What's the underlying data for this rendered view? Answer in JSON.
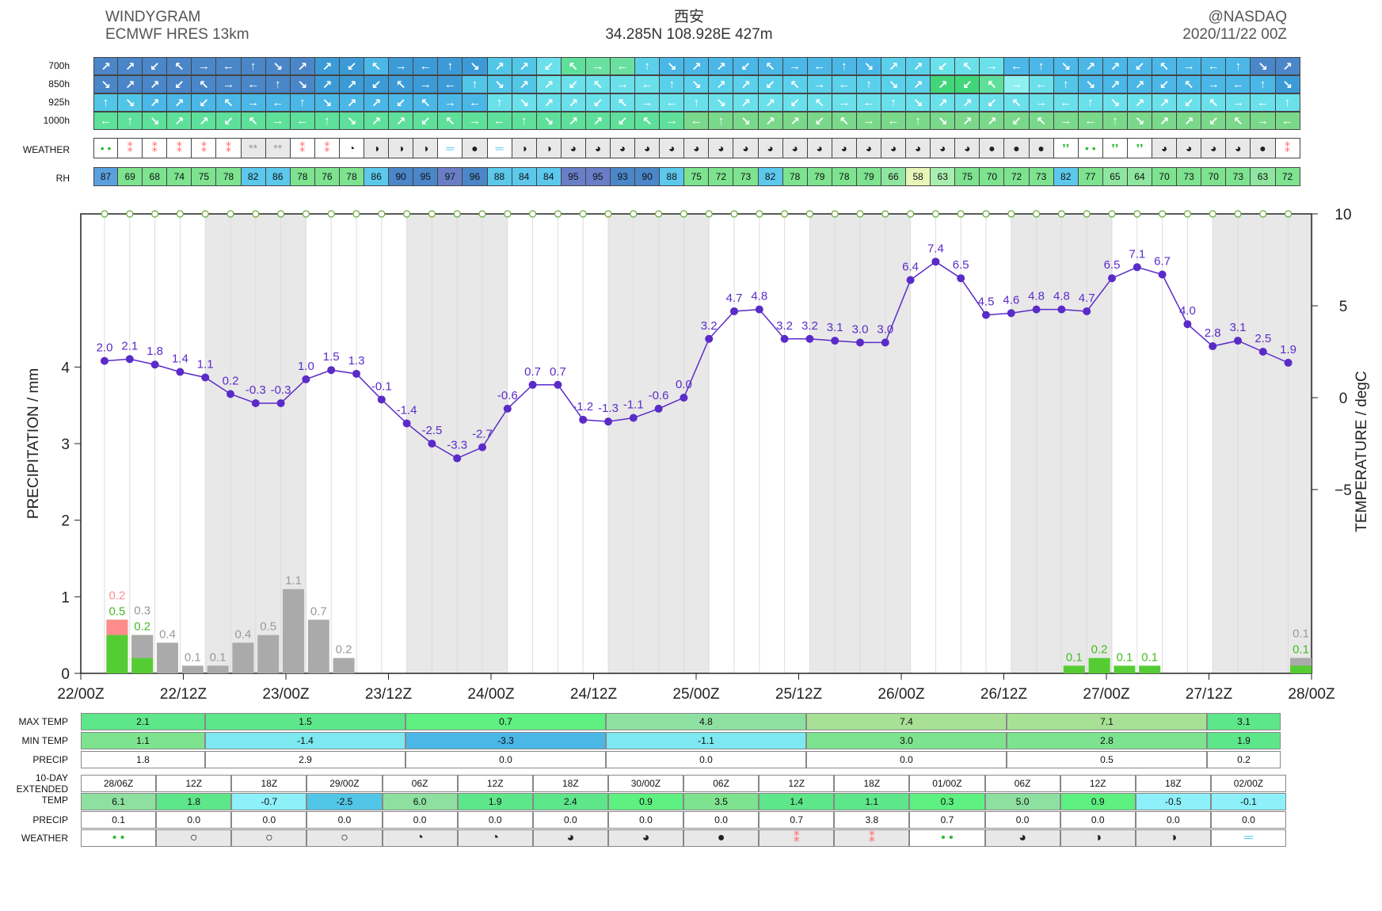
{
  "header": {
    "title_line1": "WINDYGRAM",
    "title_line2": "ECMWF HRES 13km",
    "location": "西安",
    "coords": "34.285N 108.928E 427m",
    "credit": "@NASDAQ",
    "run": "2020/11/22 00Z"
  },
  "wind_levels": [
    "700h",
    "850h",
    "925h",
    "1000h"
  ],
  "labels": {
    "weather": "WEATHER",
    "rh": "RH"
  },
  "wind_colors": {
    "700h": [
      "#4a86c8",
      "#4a86c8",
      "#4a86c8",
      "#4a86c8",
      "#4a86c8",
      "#4a86c8",
      "#4a86c8",
      "#4a86c8",
      "#4a86c8",
      "#3c9bd6",
      "#3c9bd6",
      "#4ab7e6",
      "#3c9bd6",
      "#3c9bd6",
      "#3c9bd6",
      "#3c9bd6",
      "#52c6e6",
      "#52c6e6",
      "#6ae0ea",
      "#5ee09a",
      "#6ae0a0",
      "#6ae0a0",
      "#5ad0ea",
      "#4ab7e6",
      "#4ab7e6",
      "#4ab7e6",
      "#4ab7e6",
      "#4ab7e6",
      "#4ab7e6",
      "#4ab7e6",
      "#4ab7e6",
      "#4ab7e6",
      "#5ad0ea",
      "#5ad0ea",
      "#6ae0ea",
      "#6ae0ea",
      "#6ae0ea",
      "#4ab7e6",
      "#4ab7e6",
      "#4ab7e6",
      "#4ab7e6",
      "#4ab7e6",
      "#4ab7e6",
      "#4ab7e6",
      "#4ab7e6",
      "#4ab7e6",
      "#4ab7e6",
      "#4a86c8",
      "#4a86c8"
    ],
    "850h": [
      "#4a86c8",
      "#4a86c8",
      "#4a86c8",
      "#4a86c8",
      "#4a86c8",
      "#4a86c8",
      "#4a86c8",
      "#4a86c8",
      "#4a86c8",
      "#3c9bd6",
      "#3c9bd6",
      "#3c9bd6",
      "#3c9bd6",
      "#3c9bd6",
      "#3c9bd6",
      "#52c6e6",
      "#52c6e6",
      "#52c6e6",
      "#6ae0ea",
      "#6ae0ea",
      "#6ae0ea",
      "#6ae0ea",
      "#6ae0ea",
      "#5ad0ea",
      "#5ad0ea",
      "#5ad0ea",
      "#5ad0ea",
      "#5ad0ea",
      "#5ad0ea",
      "#5ad0ea",
      "#5ad0ea",
      "#5ad0ea",
      "#5ad0ea",
      "#5ad0ea",
      "#42d67a",
      "#42d67a",
      "#5ee09a",
      "#8ef0f0",
      "#6ae0ea",
      "#52c6e6",
      "#4ab7e6",
      "#4ab7e6",
      "#4ab7e6",
      "#4ab7e6",
      "#4ab7e6",
      "#4ab7e6",
      "#4ab7e6",
      "#4ab7e6",
      "#3c9bd6"
    ],
    "925h": [
      "#52c6e6",
      "#52c6e6",
      "#4ab7e6",
      "#4ab7e6",
      "#4ab7e6",
      "#4ab7e6",
      "#4ab7e6",
      "#4ab7e6",
      "#4ab7e6",
      "#4ab7e6",
      "#4ab7e6",
      "#4ab7e6",
      "#4ab7e6",
      "#4ab7e6",
      "#4ab7e6",
      "#4ab7e6",
      "#6ae0ea",
      "#6ae0ea",
      "#6ae0ea",
      "#6ae0ea",
      "#6ae0ea",
      "#6ae0ea",
      "#6ae0ea",
      "#6ae0ea",
      "#6ae0ea",
      "#6ae0ea",
      "#6ae0ea",
      "#6ae0ea",
      "#6ae0ea",
      "#6ae0ea",
      "#6ae0ea",
      "#6ae0ea",
      "#6ae0ea",
      "#6ae0ea",
      "#6ae0ea",
      "#6ae0ea",
      "#6ae0ea",
      "#6ae0ea",
      "#6ae0ea",
      "#6ae0ea",
      "#6ae0ea",
      "#6ae0ea",
      "#6ae0ea",
      "#6ae0ea",
      "#6ae0ea",
      "#6ae0ea",
      "#6ae0ea",
      "#6ae0ea",
      "#6ae0ea"
    ],
    "1000h": [
      "#5ee09a",
      "#5ee09a",
      "#5ee09a",
      "#5ee09a",
      "#5ee09a",
      "#5ee09a",
      "#5ee09a",
      "#5ee09a",
      "#5ee09a",
      "#5ee09a",
      "#5ee09a",
      "#5ee09a",
      "#5ee09a",
      "#5ee09a",
      "#5ee09a",
      "#5ee09a",
      "#5ee09a",
      "#5ee09a",
      "#5ee09a",
      "#5ee09a",
      "#5ee09a",
      "#5ee09a",
      "#5ee09a",
      "#5ee09a",
      "#7ad88a",
      "#7ad88a",
      "#7ad88a",
      "#7ad88a",
      "#7ad88a",
      "#7ad88a",
      "#7ad88a",
      "#7ad88a",
      "#7ad88a",
      "#7ad88a",
      "#7ad88a",
      "#7ad88a",
      "#7ad88a",
      "#7ad88a",
      "#7ad88a",
      "#7ad88a",
      "#7ad88a",
      "#7ad88a",
      "#7ad88a",
      "#7ad88a",
      "#7ad88a",
      "#7ad88a",
      "#7ad88a",
      "#7ad88a",
      "#7ad88a"
    ]
  },
  "weather_icons": [
    "drizzle",
    "snow",
    "snow",
    "snow",
    "snow",
    "snow",
    "snow-light",
    "snow-light",
    "snow",
    "snow",
    "partly-cloudy",
    "half-cloudy",
    "half-cloudy",
    "half-cloudy",
    "fog",
    "overcast",
    "fog",
    "half-cloudy",
    "half-cloudy",
    "mostly-cloudy",
    "mostly-cloudy",
    "mostly-cloudy",
    "mostly-cloudy",
    "mostly-cloudy",
    "mostly-cloudy",
    "mostly-cloudy",
    "mostly-cloudy",
    "mostly-cloudy",
    "mostly-cloudy",
    "mostly-cloudy",
    "mostly-cloudy",
    "mostly-cloudy",
    "mostly-cloudy",
    "mostly-cloudy",
    "mostly-cloudy",
    "mostly-cloudy",
    "overcast",
    "overcast",
    "overcast",
    "rain",
    "drizzle",
    "rain",
    "rain",
    "mostly-cloudy",
    "mostly-cloudy",
    "mostly-cloudy",
    "mostly-cloudy",
    "overcast",
    "snow"
  ],
  "rh": [
    87,
    69,
    68,
    74,
    75,
    78,
    82,
    86,
    78,
    76,
    78,
    86,
    90,
    95,
    97,
    96,
    88,
    84,
    84,
    95,
    95,
    93,
    90,
    88,
    75,
    72,
    73,
    82,
    78,
    79,
    78,
    79,
    66,
    58,
    63,
    75,
    70,
    72,
    73,
    82,
    77,
    65,
    64,
    70,
    73,
    70,
    73,
    63,
    72
  ],
  "rh_colors": [
    "#5aa0dc",
    "#7de38f",
    "#7de38f",
    "#7de38f",
    "#7de38f",
    "#7de38f",
    "#5cc8ec",
    "#5cc8ec",
    "#7de38f",
    "#7de38f",
    "#7de38f",
    "#5cc8ec",
    "#4a86c8",
    "#4a86c8",
    "#6a7ec8",
    "#4a86c8",
    "#5cc8ec",
    "#5cc8ec",
    "#5cc8ec",
    "#6a7ec8",
    "#6a7ec8",
    "#4a86c8",
    "#4a86c8",
    "#5cc8ec",
    "#7de38f",
    "#7de38f",
    "#7de38f",
    "#5cc8ec",
    "#7de38f",
    "#7de38f",
    "#7de38f",
    "#7de38f",
    "#8fe6a0",
    "#e8f5b8",
    "#a8eeb0",
    "#7de38f",
    "#7de38f",
    "#7de38f",
    "#7de38f",
    "#5cc8ec",
    "#7de38f",
    "#8fe6a0",
    "#8fe6a0",
    "#7de38f",
    "#7de38f",
    "#7de38f",
    "#7de38f",
    "#8fe6a0",
    "#7de38f"
  ],
  "chart_data": {
    "type": "bar+line",
    "x_ticks": [
      "22/00Z",
      "22/12Z",
      "23/00Z",
      "23/12Z",
      "24/00Z",
      "24/12Z",
      "25/00Z",
      "25/12Z",
      "26/00Z",
      "26/12Z",
      "27/00Z",
      "27/12Z",
      "28/00Z"
    ],
    "ylabel_left": "PRECIPITATION / mm",
    "ylabel_right": "TEMPERATURE / degC",
    "ylim_left": [
      0,
      6
    ],
    "ylim_right": [
      -15,
      10
    ],
    "left_ticks": [
      0,
      1,
      2,
      3,
      4
    ],
    "right_ticks": [
      -5,
      0,
      5,
      10
    ],
    "temperature": [
      2.0,
      2.1,
      1.8,
      1.4,
      1.1,
      0.2,
      -0.3,
      -0.3,
      1.0,
      1.5,
      1.3,
      -0.1,
      -1.4,
      -2.5,
      -3.3,
      -2.7,
      -0.6,
      0.7,
      0.7,
      -1.2,
      -1.3,
      -1.1,
      -0.6,
      0.0,
      3.2,
      4.7,
      4.8,
      3.2,
      3.2,
      3.1,
      3.0,
      3.0,
      6.4,
      7.4,
      6.5,
      4.5,
      4.6,
      4.8,
      4.8,
      4.7,
      6.5,
      7.1,
      6.7,
      4.0,
      2.8,
      3.1,
      2.5,
      1.9
    ],
    "temperature_labels": [
      "2.0",
      "2.1",
      "1.8",
      "1.4",
      "1.1",
      "0.2",
      "-0.3",
      "-0.3",
      "1.0",
      "1.5",
      "1.3",
      "-0.1",
      "-1.4",
      "-2.5",
      "-3.3",
      "-2.7",
      "-0.6",
      "0.7",
      "0.7",
      "-1.2",
      "-1.3",
      "-1.1",
      "-0.6",
      "0.0",
      "3.2",
      "4.7",
      "4.8",
      "3.2",
      "3.2",
      "3.1",
      "3.0",
      "3.0",
      "6.4",
      "7.4",
      "6.5",
      "4.5",
      "4.6",
      "4.8",
      "4.8",
      "4.7",
      "6.5",
      "7.1",
      "6.7",
      "4.0",
      "2.8",
      "3.1",
      "2.5",
      "1.9"
    ],
    "precip_bars": [
      {
        "slot": 0,
        "total": 0.7,
        "rain": 0.5,
        "snow": 0.2,
        "labels": [
          "0.2",
          "0.5"
        ]
      },
      {
        "slot": 1,
        "total": 0.5,
        "rain": 0.2,
        "labels": [
          "0.3",
          "0.2"
        ]
      },
      {
        "slot": 2,
        "total": 0.4,
        "labels": [
          "0.4"
        ]
      },
      {
        "slot": 3,
        "total": 0.1,
        "labels": [
          "0.1"
        ]
      },
      {
        "slot": 4,
        "total": 0.1,
        "labels": [
          "0.1"
        ]
      },
      {
        "slot": 5,
        "total": 0.4,
        "labels": [
          "0.4"
        ]
      },
      {
        "slot": 6,
        "total": 0.5,
        "labels": [
          "0.5"
        ]
      },
      {
        "slot": 7,
        "total": 1.1,
        "labels": [
          "1.1"
        ]
      },
      {
        "slot": 8,
        "total": 0.7,
        "labels": [
          "0.7"
        ]
      },
      {
        "slot": 9,
        "total": 0.2,
        "labels": [
          "0.2"
        ]
      },
      {
        "slot": 38,
        "total": 0.1,
        "rain": 0.1,
        "labels": [
          "0.1"
        ]
      },
      {
        "slot": 39,
        "total": 0.2,
        "rain": 0.2,
        "labels": [
          "0.2"
        ]
      },
      {
        "slot": 40,
        "total": 0.1,
        "rain": 0.1,
        "labels": [
          "0.1"
        ]
      },
      {
        "slot": 41,
        "total": 0.1,
        "rain": 0.1,
        "labels": [
          "0.1"
        ]
      },
      {
        "slot": 47,
        "total": 0.2,
        "rain": 0.1,
        "labels": [
          "0.1",
          "0.1"
        ]
      }
    ],
    "colors": {
      "temp": "#5a2bc8",
      "rain": "#55cc33",
      "snow": "#ff8c8c",
      "other": "#aaaaaa",
      "shade": "#e8e8e8"
    },
    "grid": true
  },
  "summary": {
    "labels": [
      "MAX TEMP",
      "MIN TEMP",
      "PRECIP"
    ],
    "days": [
      {
        "max": "2.1",
        "min": "1.1",
        "precip": "1.8",
        "max_color": "#5ee68a",
        "min_color": "#7de38f"
      },
      {
        "max": "1.5",
        "min": "-1.4",
        "precip": "2.9",
        "max_color": "#5ee68a",
        "min_color": "#7de8f0"
      },
      {
        "max": "0.7",
        "min": "-3.3",
        "precip": "0.0",
        "max_color": "#5ef080",
        "min_color": "#4ab7e6"
      },
      {
        "max": "4.8",
        "min": "-1.1",
        "precip": "0.0",
        "max_color": "#8ee0a0",
        "min_color": "#7de8f0"
      },
      {
        "max": "7.4",
        "min": "3.0",
        "precip": "0.0",
        "max_color": "#a8e096",
        "min_color": "#7de38f"
      },
      {
        "max": "7.1",
        "min": "2.8",
        "precip": "0.5",
        "max_color": "#a8e096",
        "min_color": "#7de38f"
      },
      {
        "max": "3.1",
        "min": "1.9",
        "precip": "0.2",
        "max_color": "#5ee68a",
        "min_color": "#5ee68a"
      }
    ]
  },
  "extended": {
    "label_line1": "10-DAY",
    "label_line2": "EXTENDED",
    "temp_label": "TEMP",
    "precip_label": "PRECIP",
    "weather_label": "WEATHER",
    "cols": [
      {
        "time": "28/06Z",
        "temp": "6.1",
        "precip": "0.1",
        "wx": "drizzle",
        "color": "#8ee0a0"
      },
      {
        "time": "12Z",
        "temp": "1.8",
        "precip": "0.0",
        "wx": "clear",
        "color": "#5ee68a"
      },
      {
        "time": "18Z",
        "temp": "-0.7",
        "precip": "0.0",
        "wx": "clear",
        "color": "#8ef0f8"
      },
      {
        "time": "29/00Z",
        "temp": "-2.5",
        "precip": "0.0",
        "wx": "clear",
        "color": "#52c6e6"
      },
      {
        "time": "06Z",
        "temp": "6.0",
        "precip": "0.0",
        "wx": "partly-cloudy",
        "color": "#8ee0a0"
      },
      {
        "time": "12Z",
        "temp": "1.9",
        "precip": "0.0",
        "wx": "partly-cloudy",
        "color": "#5ee68a"
      },
      {
        "time": "18Z",
        "temp": "2.4",
        "precip": "0.0",
        "wx": "mostly-cloudy",
        "color": "#5ee68a"
      },
      {
        "time": "30/00Z",
        "temp": "0.9",
        "precip": "0.0",
        "wx": "mostly-cloudy",
        "color": "#5ef080"
      },
      {
        "time": "06Z",
        "temp": "3.5",
        "precip": "0.0",
        "wx": "overcast",
        "color": "#7de38f"
      },
      {
        "time": "12Z",
        "temp": "1.4",
        "precip": "0.7",
        "wx": "snow",
        "color": "#5ee68a"
      },
      {
        "time": "18Z",
        "temp": "1.1",
        "precip": "3.8",
        "wx": "snow",
        "color": "#5ee68a"
      },
      {
        "time": "01/00Z",
        "temp": "0.3",
        "precip": "0.7",
        "wx": "drizzle",
        "color": "#5ef080"
      },
      {
        "time": "06Z",
        "temp": "5.0",
        "precip": "0.0",
        "wx": "mostly-cloudy",
        "color": "#8ee0a0"
      },
      {
        "time": "12Z",
        "temp": "0.9",
        "precip": "0.0",
        "wx": "half-cloudy",
        "color": "#5ef080"
      },
      {
        "time": "18Z",
        "temp": "-0.5",
        "precip": "0.0",
        "wx": "half-cloudy",
        "color": "#8ef0f8"
      },
      {
        "time": "02/00Z",
        "temp": "-0.1",
        "precip": "0.0",
        "wx": "fog",
        "color": "#8ef0f8"
      }
    ]
  }
}
